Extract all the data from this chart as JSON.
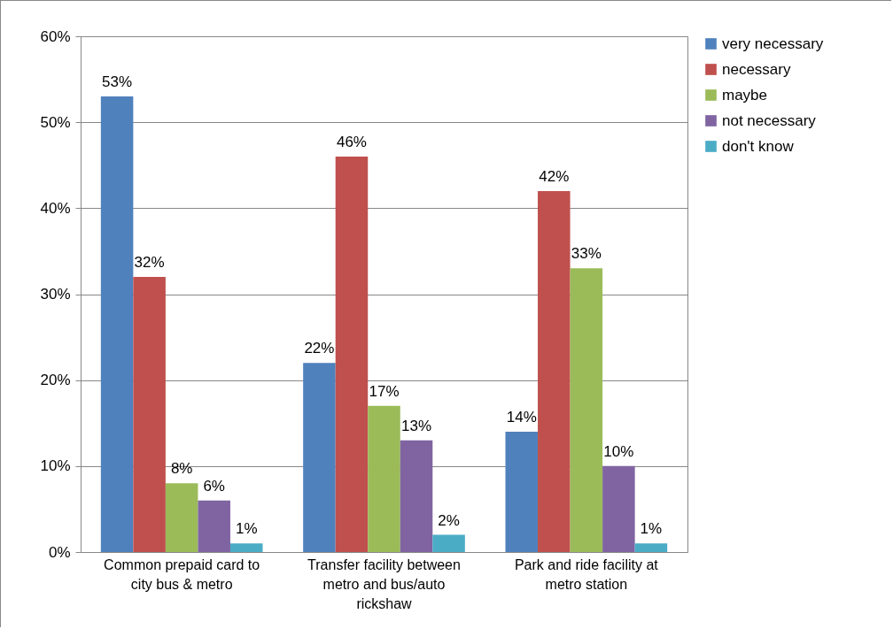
{
  "chart_data": {
    "type": "bar",
    "categories": [
      "Common prepaid card to city bus & metro",
      "Transfer facility between metro and bus/auto rickshaw",
      "Park and ride facility at metro station"
    ],
    "series": [
      {
        "name": "very necessary",
        "color": "#4f81bd",
        "values": [
          53,
          22,
          14
        ],
        "value_labels": [
          "53%",
          "22%",
          "14%"
        ]
      },
      {
        "name": "necessary",
        "color": "#c0504d",
        "values": [
          32,
          46,
          42
        ],
        "value_labels": [
          "32%",
          "46%",
          "42%"
        ]
      },
      {
        "name": "maybe",
        "color": "#9bbb59",
        "values": [
          8,
          17,
          33
        ],
        "value_labels": [
          "8%",
          "17%",
          "33%"
        ]
      },
      {
        "name": "not necessary",
        "color": "#8064a2",
        "values": [
          6,
          13,
          10
        ],
        "value_labels": [
          "6%",
          "13%",
          "10%"
        ]
      },
      {
        "name": "don't know",
        "color": "#4bacc6",
        "values": [
          1,
          2,
          1
        ],
        "value_labels": [
          "1%",
          "2%",
          "1%"
        ]
      }
    ],
    "ylim": [
      0,
      60
    ],
    "yticks": [
      {
        "value": 0,
        "label": "0%"
      },
      {
        "value": 10,
        "label": "10%"
      },
      {
        "value": 20,
        "label": "20%"
      },
      {
        "value": 30,
        "label": "30%"
      },
      {
        "value": 40,
        "label": "40%"
      },
      {
        "value": 50,
        "label": "50%"
      },
      {
        "value": 60,
        "label": "60%"
      }
    ],
    "grid": "y",
    "legend": "right"
  }
}
